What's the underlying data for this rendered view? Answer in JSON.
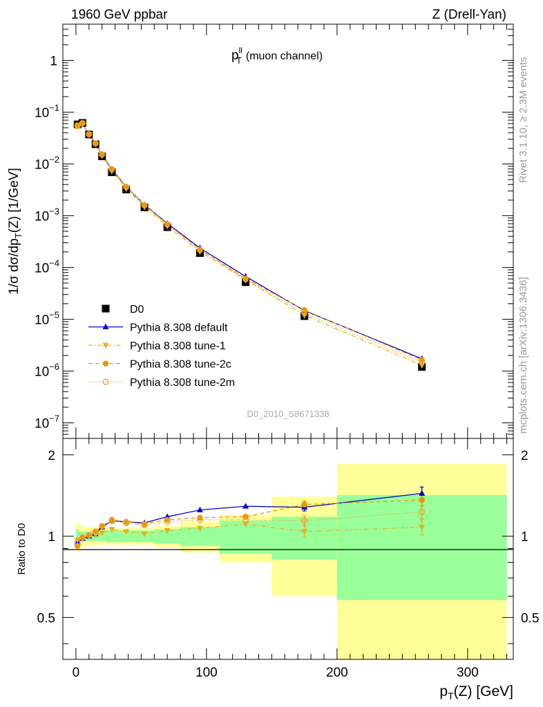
{
  "header": {
    "left": "1960 GeV ppbar",
    "right": "Z (Drell-Yan)"
  },
  "side": {
    "rivet": "Rivet 3.1.10, ≥ 2.3M events",
    "mcplots": "mcplots.cern.ch [arXiv:1306.3436]"
  },
  "chart_data": {
    "type": "scatter",
    "title": "p_T^ll (muon channel)",
    "analysis_label": "D0_2010_S8671338",
    "xlabel": "p_T(Z) [GeV]",
    "ylabel": "1/σ dσ/dp_T(Z) [1/GeV]",
    "ratio_ylabel": "Ratio to D0",
    "xlim": [
      -10,
      335
    ],
    "ylim": [
      5e-08,
      5
    ],
    "yscale": "log",
    "ratio_ylim": [
      0.35,
      2.3
    ],
    "ratio_yscale": "log",
    "legend_placement": "lower-left",
    "x_ticks": [
      "0",
      "100",
      "200",
      "300"
    ],
    "main_y_ticks": [
      "1",
      "10^-1",
      "10^-2",
      "10^-3",
      "10^-4",
      "10^-5",
      "10^-6",
      "10^-7"
    ],
    "ratio_y_ticks": [
      "2",
      "1",
      "0.5"
    ],
    "x": [
      1.25,
      5,
      10,
      15,
      20,
      27.5,
      38.5,
      52.5,
      70,
      95,
      130,
      175,
      265
    ],
    "bin_edges": [
      0,
      2.5,
      7.5,
      12.5,
      17.5,
      22.5,
      32.5,
      45,
      60,
      80,
      110,
      150,
      200,
      330
    ],
    "series": [
      {
        "name": "D0",
        "style": "data",
        "color": "#000000",
        "values": [
          0.058,
          0.062,
          0.037,
          0.024,
          0.014,
          0.0069,
          0.0032,
          0.00145,
          0.0006,
          0.00019,
          5.2e-05,
          1.15e-05,
          1.2e-06
        ]
      },
      {
        "name": "Pythia 8.308 default",
        "style": "solid-triangle-up",
        "color": "#0000cc",
        "ratio": [
          0.95,
          0.98,
          1.0,
          1.02,
          1.08,
          1.14,
          1.13,
          1.12,
          1.18,
          1.25,
          1.29,
          1.28,
          1.44
        ],
        "ratio_err": [
          0,
          0,
          0,
          0,
          0,
          0,
          0,
          0,
          0,
          0,
          0,
          0.04,
          0.08
        ]
      },
      {
        "name": "Pythia 8.308 tune-1",
        "style": "dashdot-triangle-down",
        "color": "#e6b020",
        "ratio": [
          0.97,
          0.98,
          1.0,
          1.01,
          1.03,
          1.06,
          1.04,
          1.02,
          1.05,
          1.07,
          1.11,
          1.04,
          1.08
        ],
        "ratio_err": [
          0,
          0,
          0,
          0,
          0,
          0,
          0,
          0,
          0,
          0,
          0,
          0.05,
          0.07
        ]
      },
      {
        "name": "Pythia 8.308 tune-2c",
        "style": "dashed-filled-circle",
        "color": "#e69a00",
        "ratio": [
          0.92,
          0.99,
          1.01,
          1.04,
          1.09,
          1.15,
          1.13,
          1.11,
          1.15,
          1.17,
          1.18,
          1.31,
          1.36
        ],
        "ratio_err": [
          0,
          0,
          0,
          0,
          0,
          0,
          0,
          0,
          0,
          0,
          0,
          0.04,
          0.07
        ]
      },
      {
        "name": "Pythia 8.308 tune-2m",
        "style": "dotted-open-circle",
        "color": "#f0a030",
        "ratio": [
          0.95,
          0.99,
          1.01,
          1.04,
          1.09,
          1.14,
          1.12,
          1.1,
          1.13,
          1.15,
          1.15,
          1.14,
          1.23
        ],
        "ratio_err": [
          0,
          0,
          0,
          0,
          0,
          0,
          0,
          0,
          0,
          0,
          0,
          0.05,
          0.07
        ]
      }
    ],
    "uncertainty_bands": {
      "stat_color": "#99ff99",
      "total_color": "#ffff99",
      "stat_halfwidth": [
        0.06,
        0.04,
        0.04,
        0.04,
        0.04,
        0.05,
        0.05,
        0.05,
        0.06,
        0.08,
        0.14,
        0.18,
        0.42
      ],
      "total_halfwidth": [
        0.12,
        0.09,
        0.08,
        0.08,
        0.07,
        0.07,
        0.07,
        0.07,
        0.09,
        0.13,
        0.2,
        0.4,
        0.85
      ]
    }
  }
}
